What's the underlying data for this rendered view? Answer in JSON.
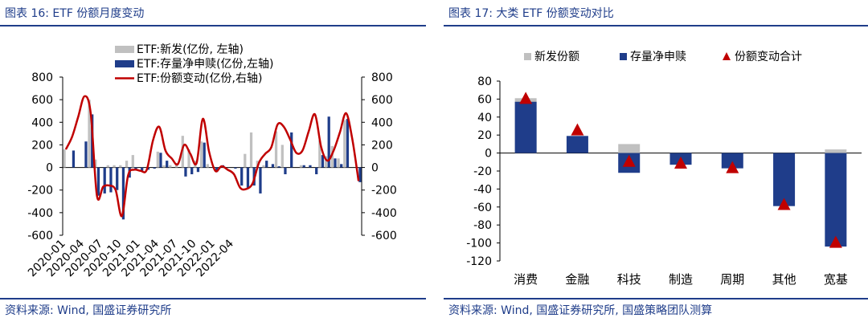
{
  "left": {
    "title": "图表 16:  ETF 份额月度变动",
    "source": "资料来源:  Wind, 国盛证券研究所",
    "chart_data": {
      "type": "bar",
      "series": [
        {
          "name": "ETF:新发(亿份, 左轴)",
          "kind": "bar",
          "color": "#c0c0c0",
          "values": [
            160,
            0,
            0,
            0,
            600,
            70,
            0,
            20,
            20,
            20,
            60,
            110,
            0,
            0,
            0,
            140,
            20,
            20,
            40,
            280,
            160,
            60,
            230,
            30,
            0,
            0,
            0,
            0,
            0,
            120,
            310,
            60,
            20,
            0,
            320,
            200,
            0,
            0,
            20,
            0,
            0,
            240,
            100,
            190,
            80,
            420,
            0,
            0
          ]
        },
        {
          "name": "ETF:存量净申赎(亿份,左轴)",
          "kind": "bar",
          "color": "#1f3d8a",
          "values": [
            0,
            150,
            0,
            230,
            470,
            -250,
            -230,
            -220,
            -200,
            -460,
            -90,
            -20,
            -30,
            -20,
            -10,
            130,
            60,
            0,
            0,
            -80,
            -60,
            -40,
            220,
            0,
            -40,
            20,
            0,
            -10,
            -160,
            -180,
            -160,
            -230,
            60,
            30,
            10,
            -60,
            310,
            0,
            20,
            20,
            -60,
            110,
            450,
            80,
            30,
            430,
            0,
            -130
          ]
        },
        {
          "name": "ETF:份额变动(亿份,右轴)",
          "kind": "line",
          "color": "#c00000",
          "values": [
            160,
            270,
            450,
            630,
            480,
            -250,
            -170,
            -160,
            -200,
            -430,
            -70,
            -20,
            -30,
            -20,
            240,
            360,
            150,
            80,
            30,
            200,
            120,
            40,
            430,
            140,
            -30,
            10,
            -20,
            -60,
            -180,
            -190,
            -140,
            40,
            120,
            180,
            380,
            360,
            250,
            130,
            150,
            320,
            470,
            180,
            60,
            150,
            310,
            480,
            250,
            -120
          ]
        }
      ],
      "ylim_left": [
        -600,
        800
      ],
      "ylim_right": [
        -600,
        800
      ],
      "yticks": [
        "800",
        "600",
        "400",
        "200",
        "0",
        "-200",
        "-400",
        "-600"
      ],
      "yticks_right": [
        "800",
        "600",
        "400",
        "200",
        "0",
        "-200",
        "-400",
        "-600"
      ],
      "xtick_labels": [
        "2020-01",
        "2020-04",
        "2020-07",
        "2020-10",
        "2021-01",
        "2021-04",
        "2021-07",
        "2021-10",
        "2022-01",
        "2022-04"
      ],
      "legend": [
        "ETF:新发(亿份,  左轴)",
        "ETF:存量净申赎(亿份,左轴)",
        "ETF:份额变动(亿份,右轴)"
      ],
      "legend_position": "top"
    }
  },
  "right": {
    "title": "图表 17:  大类 ETF 份额变动对比",
    "source": "资料来源:  Wind, 国盛证券研究所, 国盛策略团队测算",
    "chart_data": {
      "type": "bar",
      "categories": [
        "消费",
        "金融",
        "科技",
        "制造",
        "周期",
        "其他",
        "宽基"
      ],
      "series": [
        {
          "name": "新发份额",
          "kind": "bar",
          "color": "#c0c0c0",
          "values": [
            61,
            0,
            10,
            0,
            0,
            0,
            4
          ]
        },
        {
          "name": "存量净申赎",
          "kind": "bar",
          "color": "#1f3d8a",
          "values": [
            57,
            19,
            -22,
            -13,
            -17,
            -59,
            -104
          ]
        },
        {
          "name": "份额变动合计",
          "kind": "marker",
          "color": "#c00000",
          "values": [
            60,
            25,
            -10,
            -12,
            -17,
            -58,
            -100
          ]
        }
      ],
      "ylim": [
        -120,
        80
      ],
      "yticks": [
        "80",
        "60",
        "40",
        "20",
        "0",
        "-20",
        "-40",
        "-60",
        "-80",
        "-100",
        "-120"
      ],
      "legend": [
        "新发份额",
        "存量净申赎",
        "份额变动合计"
      ],
      "legend_position": "top"
    }
  }
}
